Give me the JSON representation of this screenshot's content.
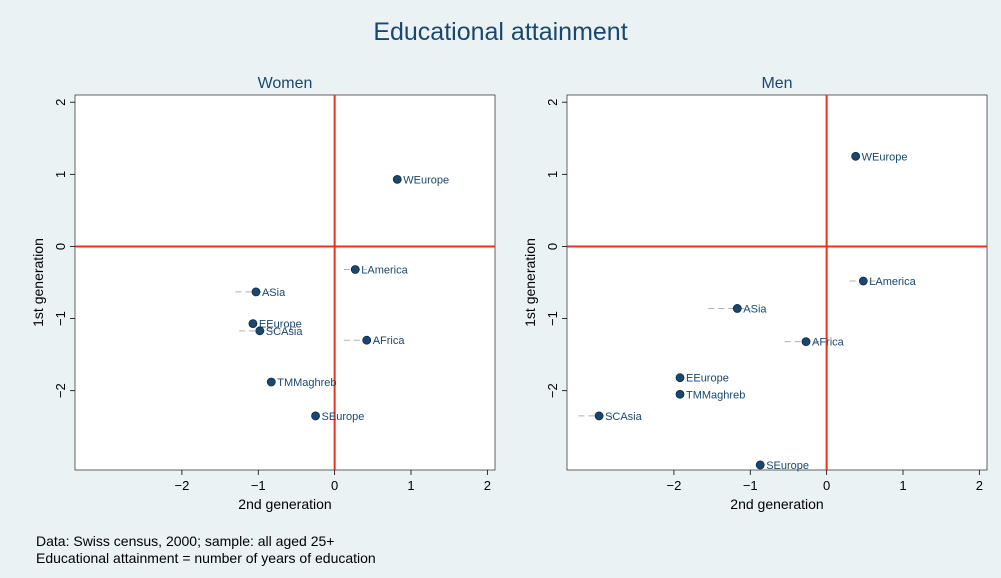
{
  "title": "Educational attainment",
  "notes": [
    "Data: Swiss census, 2000; sample: all aged 25+",
    "Educational attainment = number of years of education"
  ],
  "colors": {
    "background": "#eaf2f3",
    "plot_background": "#ffffff",
    "reference_lines": "#e8321e",
    "points": "#1a476f",
    "labels": "#1a476f",
    "error_bars": "#b0b0b0"
  },
  "chart_data": [
    {
      "type": "scatter",
      "title": "Women",
      "xlabel": "2nd generation",
      "ylabel": "1st generation",
      "xlim": [
        -3.4,
        2.1
      ],
      "ylim": [
        -3.1,
        2.1
      ],
      "xticks": [
        -2,
        -1,
        0,
        1,
        2
      ],
      "yticks": [
        -2,
        -1,
        0,
        1,
        2
      ],
      "reference_lines": {
        "x": 0,
        "y": 0
      },
      "points": [
        {
          "label": "WEurope",
          "x": 0.82,
          "y": 0.93,
          "x_lo": 0.82,
          "x_hi": 0.82
        },
        {
          "label": "LAmerica",
          "x": 0.27,
          "y": -0.32,
          "x_lo": 0.12,
          "x_hi": 0.42
        },
        {
          "label": "ASia",
          "x": -1.03,
          "y": -0.63,
          "x_lo": -1.3,
          "x_hi": -0.85
        },
        {
          "label": "EEurope",
          "x": -1.07,
          "y": -1.07,
          "x_lo": -1.07,
          "x_hi": -1.07
        },
        {
          "label": "SCAsia",
          "x": -0.98,
          "y": -1.17,
          "x_lo": -1.25,
          "x_hi": -0.7
        },
        {
          "label": "AFrica",
          "x": 0.42,
          "y": -1.3,
          "x_lo": 0.12,
          "x_hi": 0.55
        },
        {
          "label": "TMMaghreb",
          "x": -0.83,
          "y": -1.88,
          "x_lo": -0.83,
          "x_hi": -0.83
        },
        {
          "label": "SEurope",
          "x": -0.25,
          "y": -2.35,
          "x_lo": -0.25,
          "x_hi": -0.25
        }
      ]
    },
    {
      "type": "scatter",
      "title": "Men",
      "xlabel": "2nd generation",
      "ylabel": "1st generation",
      "xlim": [
        -3.4,
        2.1
      ],
      "ylim": [
        -3.1,
        2.1
      ],
      "xticks": [
        -2,
        -1,
        0,
        1,
        2
      ],
      "yticks": [
        -2,
        -1,
        0,
        1,
        2
      ],
      "reference_lines": {
        "x": 0,
        "y": 0
      },
      "points": [
        {
          "label": "WEurope",
          "x": 0.38,
          "y": 1.25,
          "x_lo": 0.38,
          "x_hi": 0.38
        },
        {
          "label": "LAmerica",
          "x": 0.48,
          "y": -0.48,
          "x_lo": 0.3,
          "x_hi": 0.65
        },
        {
          "label": "ASia",
          "x": -1.17,
          "y": -0.86,
          "x_lo": -1.55,
          "x_hi": -1.0
        },
        {
          "label": "AFrica",
          "x": -0.27,
          "y": -1.32,
          "x_lo": -0.55,
          "x_hi": -0.1
        },
        {
          "label": "EEurope",
          "x": -1.92,
          "y": -1.82,
          "x_lo": -1.92,
          "x_hi": -1.92
        },
        {
          "label": "TMMaghreb",
          "x": -1.92,
          "y": -2.05,
          "x_lo": -1.92,
          "x_hi": -1.92
        },
        {
          "label": "SCAsia",
          "x": -2.98,
          "y": -2.35,
          "x_lo": -3.25,
          "x_hi": -2.8
        },
        {
          "label": "SEurope",
          "x": -0.87,
          "y": -3.03,
          "x_lo": -0.87,
          "x_hi": -0.87
        }
      ]
    }
  ]
}
